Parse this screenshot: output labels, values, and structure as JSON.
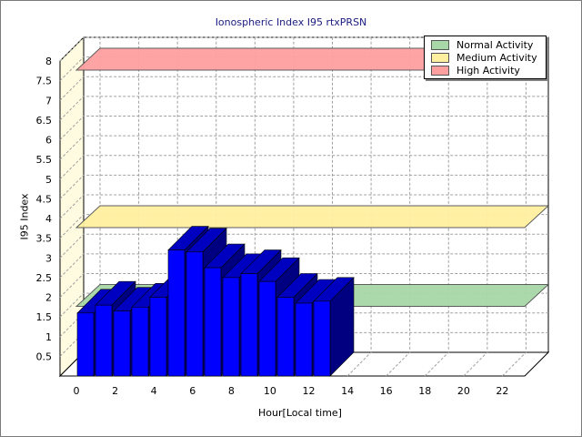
{
  "chart_data": {
    "type": "bar",
    "title": "Ionospheric Index I95 rtxPRSN",
    "xlabel": "Hour[Local time]",
    "ylabel": "I95 Index",
    "x": [
      0,
      1,
      2,
      3,
      4,
      5,
      6,
      7,
      8,
      9,
      10,
      11,
      12,
      13
    ],
    "values": [
      1.6,
      1.8,
      1.65,
      1.75,
      2.0,
      3.2,
      3.15,
      2.75,
      2.5,
      2.6,
      2.4,
      2.0,
      1.85,
      1.9
    ],
    "xlim": [
      0,
      24
    ],
    "ylim": [
      0,
      8
    ],
    "x_ticks": [
      "0",
      "2",
      "4",
      "6",
      "8",
      "10",
      "12",
      "14",
      "16",
      "18",
      "20",
      "22"
    ],
    "y_ticks": [
      "0.5",
      "1",
      "1.5",
      "2",
      "2.5",
      "3",
      "3.5",
      "4",
      "4.5",
      "5",
      "5.5",
      "6",
      "6.5",
      "7",
      "7.5",
      "8"
    ],
    "bar_color": "#0000ff",
    "grid": true,
    "legend_position": "top-right",
    "bands": [
      {
        "name": "Normal Activity",
        "value": 2.0,
        "color": "#a8d8a8"
      },
      {
        "name": "Medium Activity",
        "value": 4.0,
        "color": "#fff0a0"
      },
      {
        "name": "High Activity",
        "value": 8.0,
        "color": "#ffa0a0"
      }
    ]
  }
}
